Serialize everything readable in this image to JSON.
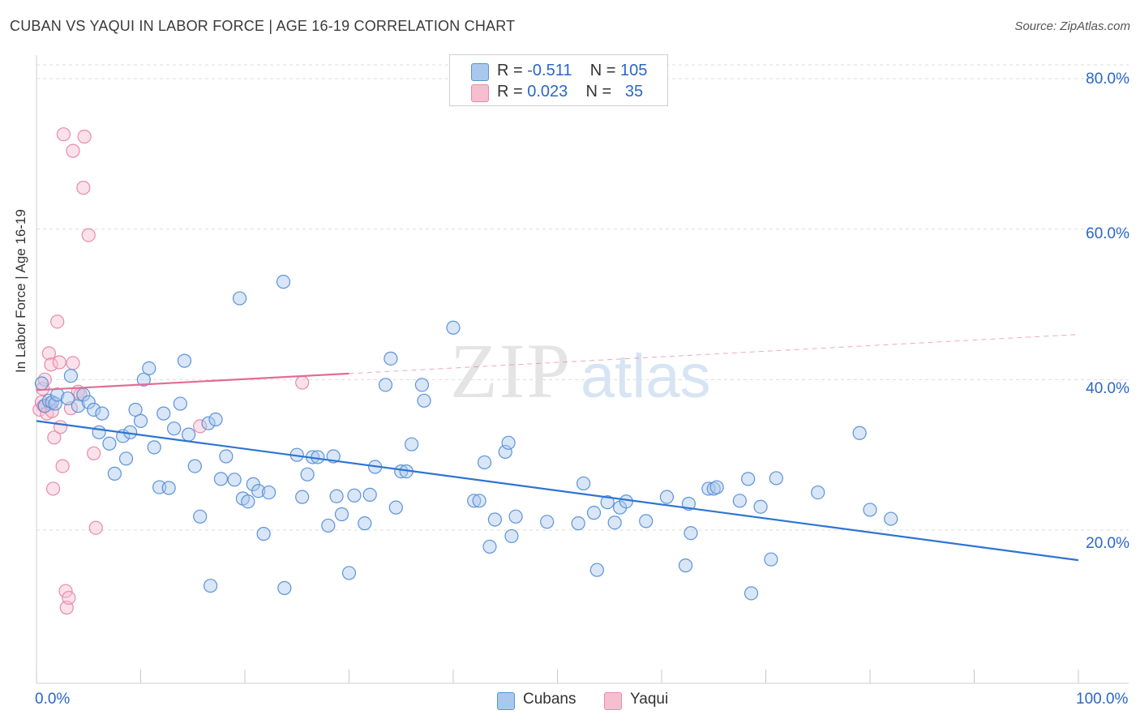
{
  "title": "CUBAN VS YAQUI IN LABOR FORCE | AGE 16-19 CORRELATION CHART",
  "source": "Source: ZipAtlas.com",
  "colors": {
    "cubans_fill": "#aac8ee",
    "cubans_stroke": "#5b93d8",
    "cubans_line": "#2d74d4",
    "yaqui_fill": "#f6bfd0",
    "yaqui_stroke": "#e88aaa",
    "yaqui_line": "#e36c96",
    "value_blue": "#2a66c9",
    "grid": "#dcdcdc"
  },
  "legend_top": {
    "rows": [
      {
        "r_label": "R =",
        "r_value": "-0.511",
        "n_label": "N =",
        "n_value": "105"
      },
      {
        "r_label": "R =",
        "r_value": "0.023",
        "n_label": "N =",
        "n_value": "35"
      }
    ]
  },
  "legend_bottom": {
    "cubans": "Cubans",
    "yaqui": "Yaqui"
  },
  "axes": {
    "ylabel": "In Labor Force | Age 16-19",
    "y_ticks": [
      "80.0%",
      "60.0%",
      "40.0%",
      "20.0%"
    ],
    "x_left": "0.0%",
    "x_right": "100.0%"
  },
  "watermark": {
    "part1": "ZIP",
    "part2": "atlas"
  },
  "chart_data": {
    "type": "scatter",
    "xlim": [
      0,
      100
    ],
    "ylim": [
      0,
      84
    ],
    "y_grid": [
      20,
      40,
      60,
      80
    ],
    "series": [
      {
        "name": "Cubans",
        "trend": {
          "x": [
            0,
            100
          ],
          "y": [
            34.5,
            16.0
          ]
        },
        "points": [
          [
            0.5,
            39.5
          ],
          [
            0.8,
            36.5
          ],
          [
            1.2,
            37.2
          ],
          [
            1.5,
            37.0
          ],
          [
            1.8,
            36.8
          ],
          [
            2.0,
            38.0
          ],
          [
            3.0,
            37.5
          ],
          [
            3.3,
            40.5
          ],
          [
            4.0,
            36.5
          ],
          [
            4.5,
            38.0
          ],
          [
            5.0,
            37.0
          ],
          [
            5.5,
            36.0
          ],
          [
            6.0,
            33.0
          ],
          [
            6.3,
            35.5
          ],
          [
            7.0,
            31.5
          ],
          [
            7.5,
            27.5
          ],
          [
            8.3,
            32.5
          ],
          [
            8.6,
            29.5
          ],
          [
            9.0,
            33.0
          ],
          [
            9.5,
            36.0
          ],
          [
            10.0,
            34.5
          ],
          [
            10.3,
            40.0
          ],
          [
            10.8,
            41.5
          ],
          [
            11.3,
            31.0
          ],
          [
            11.8,
            25.7
          ],
          [
            12.2,
            35.5
          ],
          [
            12.7,
            25.6
          ],
          [
            13.2,
            33.5
          ],
          [
            13.8,
            36.8
          ],
          [
            14.2,
            42.5
          ],
          [
            14.6,
            32.7
          ],
          [
            15.2,
            28.5
          ],
          [
            15.7,
            21.8
          ],
          [
            16.5,
            34.2
          ],
          [
            16.7,
            12.6
          ],
          [
            17.2,
            34.7
          ],
          [
            17.7,
            26.8
          ],
          [
            18.2,
            29.8
          ],
          [
            19.0,
            26.7
          ],
          [
            19.5,
            50.8
          ],
          [
            19.8,
            24.2
          ],
          [
            20.3,
            23.8
          ],
          [
            20.8,
            26.1
          ],
          [
            21.3,
            25.2
          ],
          [
            21.8,
            19.5
          ],
          [
            22.3,
            25.0
          ],
          [
            23.8,
            12.3
          ],
          [
            23.7,
            53.0
          ],
          [
            25.0,
            30.0
          ],
          [
            25.5,
            24.4
          ],
          [
            26.0,
            27.4
          ],
          [
            26.5,
            29.7
          ],
          [
            27.0,
            29.7
          ],
          [
            28.0,
            20.6
          ],
          [
            28.5,
            29.8
          ],
          [
            28.8,
            24.5
          ],
          [
            29.3,
            22.1
          ],
          [
            30.0,
            14.3
          ],
          [
            30.5,
            24.6
          ],
          [
            31.5,
            20.9
          ],
          [
            32.0,
            24.7
          ],
          [
            32.5,
            28.4
          ],
          [
            33.5,
            39.3
          ],
          [
            34.0,
            42.8
          ],
          [
            34.5,
            23.0
          ],
          [
            35.0,
            27.8
          ],
          [
            35.5,
            27.8
          ],
          [
            36.0,
            31.4
          ],
          [
            37.0,
            39.3
          ],
          [
            37.2,
            37.2
          ],
          [
            40.0,
            46.9
          ],
          [
            42.0,
            23.9
          ],
          [
            42.5,
            23.9
          ],
          [
            43.0,
            29.0
          ],
          [
            43.5,
            17.8
          ],
          [
            44.0,
            21.4
          ],
          [
            45.0,
            30.4
          ],
          [
            45.3,
            31.6
          ],
          [
            45.6,
            19.2
          ],
          [
            46.0,
            21.8
          ],
          [
            49.0,
            21.1
          ],
          [
            52.0,
            20.9
          ],
          [
            52.5,
            26.2
          ],
          [
            53.5,
            22.3
          ],
          [
            53.8,
            14.7
          ],
          [
            54.8,
            23.7
          ],
          [
            55.5,
            21.0
          ],
          [
            56.0,
            23.0
          ],
          [
            56.6,
            23.8
          ],
          [
            58.5,
            21.2
          ],
          [
            60.5,
            24.4
          ],
          [
            62.3,
            15.3
          ],
          [
            62.6,
            23.5
          ],
          [
            62.8,
            19.6
          ],
          [
            64.5,
            25.5
          ],
          [
            65.0,
            25.5
          ],
          [
            65.3,
            25.7
          ],
          [
            67.5,
            23.9
          ],
          [
            68.3,
            26.8
          ],
          [
            68.6,
            11.6
          ],
          [
            69.5,
            23.1
          ],
          [
            70.5,
            16.1
          ],
          [
            71.0,
            26.9
          ],
          [
            75.0,
            25.0
          ],
          [
            79.0,
            32.9
          ],
          [
            80.0,
            22.7
          ],
          [
            82.0,
            21.5
          ]
        ]
      },
      {
        "name": "Yaqui",
        "trend": {
          "x": [
            0,
            30
          ],
          "y": [
            38.6,
            40.8
          ]
        },
        "trend_dashed": {
          "x": [
            30,
            100
          ],
          "y": [
            40.8,
            46.0
          ]
        },
        "points": [
          [
            0.3,
            36.0
          ],
          [
            0.5,
            37.0
          ],
          [
            0.6,
            38.8
          ],
          [
            0.7,
            36.5
          ],
          [
            0.8,
            40.0
          ],
          [
            1.0,
            35.5
          ],
          [
            1.2,
            43.5
          ],
          [
            1.3,
            36.8
          ],
          [
            1.4,
            42.0
          ],
          [
            1.5,
            35.8
          ],
          [
            1.6,
            25.5
          ],
          [
            1.7,
            32.3
          ],
          [
            2.0,
            47.7
          ],
          [
            2.2,
            42.3
          ],
          [
            2.3,
            33.7
          ],
          [
            2.5,
            28.5
          ],
          [
            2.6,
            72.6
          ],
          [
            2.8,
            11.9
          ],
          [
            2.9,
            9.7
          ],
          [
            3.1,
            11.0
          ],
          [
            3.3,
            36.2
          ],
          [
            3.5,
            42.2
          ],
          [
            3.5,
            70.4
          ],
          [
            4.0,
            38.4
          ],
          [
            4.2,
            38.0
          ],
          [
            4.5,
            65.5
          ],
          [
            4.6,
            72.3
          ],
          [
            5.0,
            59.2
          ],
          [
            5.5,
            30.2
          ],
          [
            5.7,
            20.3
          ],
          [
            15.7,
            33.8
          ],
          [
            25.5,
            39.6
          ]
        ]
      }
    ]
  }
}
